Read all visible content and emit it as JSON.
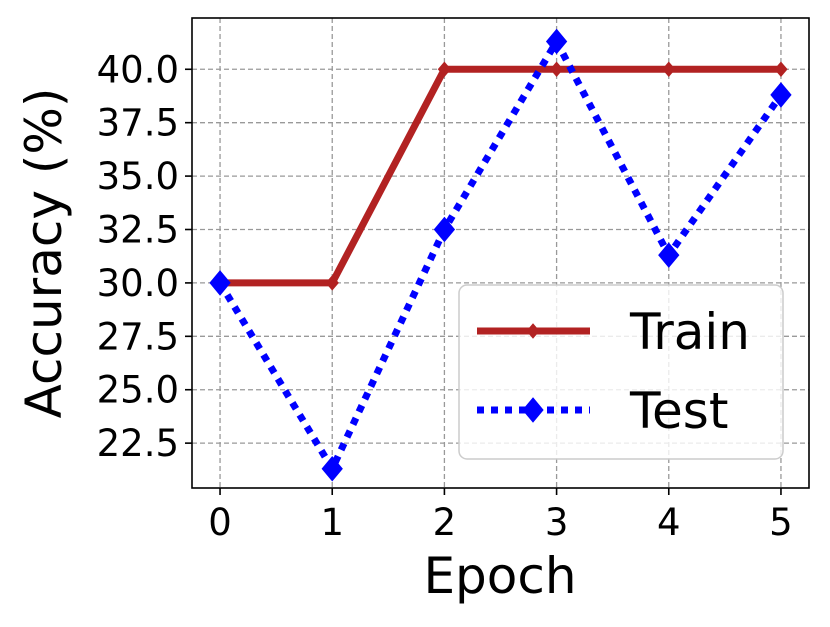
{
  "chart_data": {
    "type": "line",
    "title": "",
    "xlabel": "Epoch",
    "ylabel": "Accuracy (%)",
    "x": [
      0,
      1,
      2,
      3,
      4,
      5
    ],
    "x_ticks": [
      "0",
      "1",
      "2",
      "3",
      "4",
      "5"
    ],
    "y_ticks": [
      "22.5",
      "25.0",
      "27.5",
      "30.0",
      "32.5",
      "35.0",
      "37.5",
      "40.0"
    ],
    "xlim": [
      -0.25,
      5.25
    ],
    "ylim": [
      20.4,
      42.4
    ],
    "grid": true,
    "legend_position": "lower-right",
    "series": [
      {
        "name": "Train",
        "values": [
          30.0,
          30.0,
          40.0,
          40.0,
          40.0,
          40.0
        ],
        "color": "#b22222",
        "line_style": "solid",
        "marker": "thin-diamond"
      },
      {
        "name": "Test",
        "values": [
          30.0,
          21.3,
          32.5,
          41.3,
          31.3,
          38.8
        ],
        "color": "#0000ff",
        "line_style": "dotted",
        "marker": "diamond"
      }
    ]
  }
}
